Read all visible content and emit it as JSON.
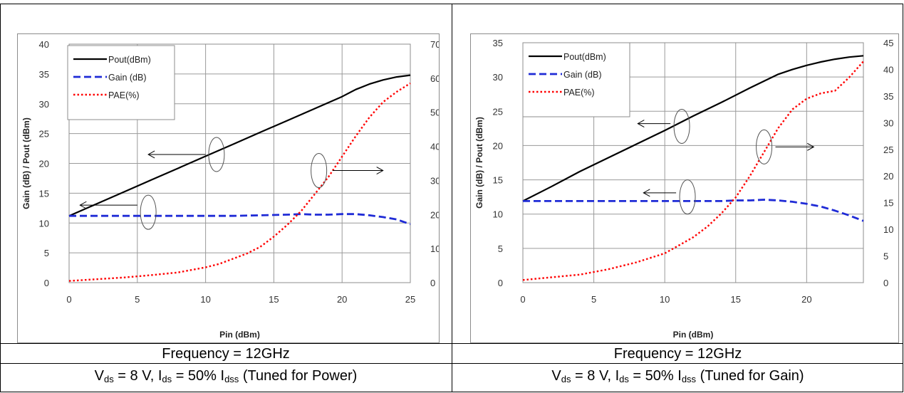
{
  "chart_data": [
    {
      "type": "line",
      "xlabel": "Pin (dBm)",
      "ylabel": "Gain (dB) / Pout (dBm)",
      "y2label": "PAE (%)",
      "xlim": [
        0,
        25
      ],
      "ylim": [
        0,
        40
      ],
      "y2lim": [
        0,
        70
      ],
      "xticks": [
        "0",
        "5",
        "10",
        "15",
        "20",
        "25"
      ],
      "yticks": [
        "0",
        "5",
        "10",
        "15",
        "20",
        "25",
        "30",
        "35",
        "40"
      ],
      "y2ticks": [
        "0",
        "10",
        "20",
        "30",
        "40",
        "50",
        "60",
        "70"
      ],
      "grid": true,
      "legend_position": "top-left",
      "series": [
        {
          "name": "Pout(dBm)",
          "axis": "left",
          "color": "#000000",
          "dash": "solid",
          "x": [
            0,
            2,
            4,
            6,
            8,
            10,
            12,
            14,
            16,
            18,
            20,
            21,
            22,
            23,
            24,
            25
          ],
          "y": [
            11.2,
            13.2,
            15.2,
            17.2,
            19.2,
            21.2,
            23.2,
            25.2,
            27.2,
            29.2,
            31.2,
            32.4,
            33.3,
            34.0,
            34.5,
            34.8
          ]
        },
        {
          "name": "Gain (dB)",
          "axis": "left",
          "color": "#1f2bd6",
          "dash": "dashed",
          "x": [
            0,
            2,
            4,
            6,
            8,
            10,
            12,
            14,
            16,
            17,
            18,
            19,
            20,
            21,
            22,
            23,
            24,
            25
          ],
          "y": [
            11.2,
            11.2,
            11.2,
            11.2,
            11.2,
            11.2,
            11.2,
            11.3,
            11.4,
            11.5,
            11.4,
            11.4,
            11.5,
            11.5,
            11.3,
            11.0,
            10.6,
            9.8
          ]
        },
        {
          "name": "PAE(%)",
          "axis": "right",
          "color": "#ff0000",
          "dash": "dotted",
          "x": [
            0,
            2,
            4,
            6,
            8,
            10,
            11,
            12,
            13,
            14,
            15,
            16,
            17,
            18,
            19,
            20,
            21,
            22,
            23,
            24,
            25
          ],
          "y": [
            0.5,
            1.0,
            1.5,
            2.2,
            3.0,
            4.5,
            5.5,
            7.0,
            8.5,
            10.5,
            13.5,
            17.0,
            21.0,
            26.0,
            31.0,
            37.0,
            43.0,
            48.5,
            53.0,
            56.0,
            58.5
          ]
        }
      ],
      "annotations": [
        {
          "circle": [
            10.8,
            21.5
          ],
          "arrow_from": [
            10.0,
            21.5
          ],
          "arrow_to": [
            5.8,
            21.5
          ],
          "direction": "left"
        },
        {
          "circle": [
            5.8,
            11.8
          ],
          "arrow_from": [
            5.0,
            13.0
          ],
          "arrow_to": [
            0.8,
            13.0
          ],
          "direction": "left"
        },
        {
          "circle": [
            18.3,
            18.8
          ],
          "arrow_from": [
            19.3,
            18.8
          ],
          "arrow_to": [
            23.0,
            18.8
          ],
          "direction": "right"
        }
      ]
    },
    {
      "type": "line",
      "xlabel": "Pin (dBm)",
      "ylabel": "Gain (dB) / Pout (dBm)",
      "y2label": "PAE (%)",
      "xlim": [
        0,
        24
      ],
      "ylim": [
        0,
        35
      ],
      "y2lim": [
        0,
        45
      ],
      "xticks": [
        "0",
        "5",
        "10",
        "15",
        "20"
      ],
      "yticks": [
        "0",
        "5",
        "10",
        "15",
        "20",
        "25",
        "30",
        "35"
      ],
      "y2ticks": [
        "0",
        "5",
        "10",
        "15",
        "20",
        "25",
        "30",
        "35",
        "40",
        "45"
      ],
      "grid": true,
      "legend_position": "top-left",
      "series": [
        {
          "name": "Pout(dBm)",
          "axis": "left",
          "color": "#000000",
          "dash": "solid",
          "x": [
            0,
            2,
            4,
            6,
            8,
            10,
            12,
            14,
            16,
            17,
            18,
            19,
            20,
            21,
            22,
            23,
            24
          ],
          "y": [
            11.9,
            14.0,
            16.2,
            18.2,
            20.2,
            22.2,
            24.3,
            26.3,
            28.4,
            29.4,
            30.4,
            31.1,
            31.7,
            32.2,
            32.6,
            32.9,
            33.1
          ]
        },
        {
          "name": "Gain (dB)",
          "axis": "left",
          "color": "#1f2bd6",
          "dash": "dashed",
          "x": [
            0,
            2,
            4,
            6,
            8,
            10,
            12,
            14,
            15,
            16,
            17,
            18,
            19,
            20,
            21,
            22,
            23,
            24
          ],
          "y": [
            11.9,
            11.9,
            11.9,
            11.9,
            11.9,
            11.9,
            11.9,
            11.9,
            12.0,
            12.0,
            12.1,
            12.0,
            11.8,
            11.5,
            11.1,
            10.5,
            9.8,
            9.0
          ]
        },
        {
          "name": "PAE(%)",
          "axis": "right",
          "color": "#ff0000",
          "dash": "dotted",
          "x": [
            0,
            2,
            4,
            6,
            8,
            10,
            11,
            12,
            13,
            14,
            15,
            16,
            17,
            18,
            19,
            20,
            21,
            22,
            23,
            24
          ],
          "y": [
            0.5,
            1.0,
            1.5,
            2.5,
            3.8,
            5.5,
            7.0,
            8.5,
            10.5,
            13.0,
            16.0,
            20.0,
            24.5,
            29.0,
            32.5,
            34.5,
            35.5,
            36.0,
            38.5,
            41.5
          ]
        }
      ],
      "annotations": [
        {
          "circle": [
            11.2,
            22.8
          ],
          "arrow_from": [
            10.4,
            23.2
          ],
          "arrow_to": [
            8.1,
            23.2
          ],
          "direction": "left"
        },
        {
          "circle": [
            11.6,
            12.5
          ],
          "arrow_from": [
            10.8,
            13.1
          ],
          "arrow_to": [
            8.5,
            13.1
          ],
          "direction": "left"
        },
        {
          "circle": [
            17.0,
            19.8
          ],
          "arrow_from": [
            17.8,
            19.8
          ],
          "arrow_to": [
            20.5,
            19.8
          ],
          "direction": "right"
        }
      ]
    }
  ],
  "captions": [
    {
      "frequency": "Frequency = 12GHz",
      "v": "V",
      "v_sub": "ds",
      "v_text": " = 8 V, I",
      "i_sub": "ds",
      "i_text": " = 50% I",
      "idss_sub": "dss",
      "tail": " (Tuned for Power)"
    },
    {
      "frequency": "Frequency = 12GHz",
      "v": "V",
      "v_sub": "ds",
      "v_text": " = 8 V, I",
      "i_sub": "ds",
      "i_text": " = 50% I",
      "idss_sub": "dss",
      "tail": " (Tuned for Gain)"
    }
  ]
}
